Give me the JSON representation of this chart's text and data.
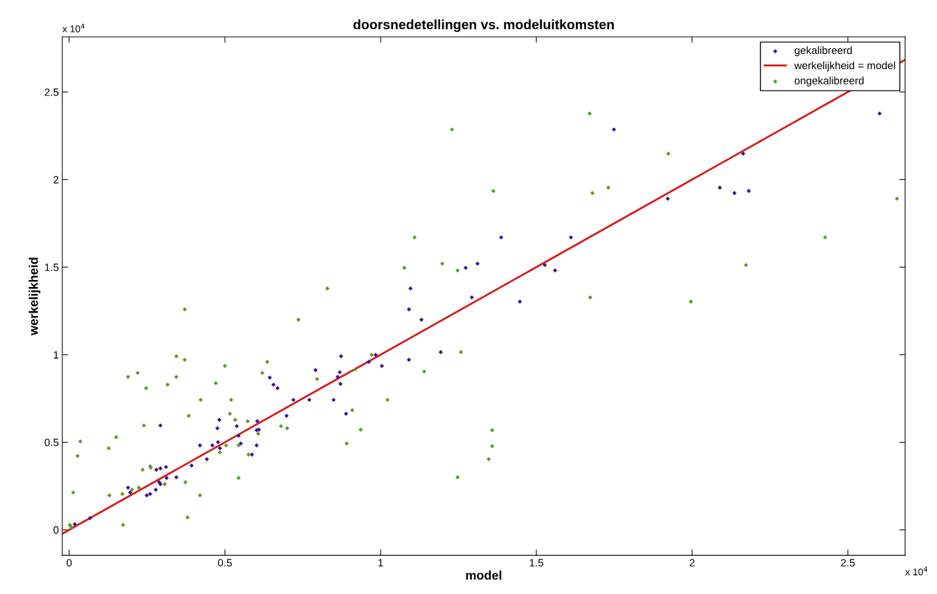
{
  "chart_data": {
    "type": "scatter",
    "title": "doorsnedetellingen vs. modeluitkomsten",
    "xlabel": "model",
    "ylabel": "werkelijkheid",
    "annotations": [
      "x 10$^{4}$",
      "x 10$^{4}$"
    ],
    "xlim": [
      -0.022,
      2.684
    ],
    "ylim": [
      -0.146,
      2.815
    ],
    "xticks": [
      0,
      0.5,
      1,
      1.5,
      2,
      2.5
    ],
    "yticks": [
      0,
      0.5,
      1,
      1.5,
      2,
      2.5
    ],
    "grid": false,
    "legend": "top right",
    "marker": "diamond",
    "series": [
      {
        "name": "gekalibreerd",
        "color": "#3f1590",
        "x": [
          0.018,
          0.067,
          0.189,
          0.196,
          0.249,
          0.26,
          0.278,
          0.28,
          0.293,
          0.311,
          0.289,
          0.293,
          0.313,
          0.293,
          0.344,
          0.393,
          0.42,
          0.442,
          0.46,
          0.476,
          0.482,
          0.478,
          0.484,
          0.538,
          0.544,
          0.551,
          0.587,
          0.602,
          0.604,
          0.602,
          0.609,
          0.644,
          0.656,
          0.669,
          0.698,
          0.72,
          0.771,
          0.791,
          0.849,
          0.862,
          0.869,
          0.873,
          0.871,
          0.889,
          1.096,
          1.091,
          1.131,
          1.293,
          1.447,
          0.984,
          0.962,
          1.004,
          1.091,
          1.193,
          1.387,
          1.611,
          1.273,
          1.311,
          1.56,
          1.527,
          1.749,
          2.602,
          2.164,
          1.922,
          2.089,
          2.136,
          2.182
        ],
        "values": [
          0.032,
          0.067,
          0.241,
          0.213,
          0.197,
          0.205,
          0.229,
          0.343,
          0.351,
          0.359,
          0.272,
          0.261,
          0.296,
          0.596,
          0.3,
          0.367,
          0.482,
          0.403,
          0.482,
          0.58,
          0.628,
          0.501,
          0.466,
          0.592,
          0.537,
          0.493,
          0.43,
          0.482,
          0.62,
          0.569,
          0.572,
          0.869,
          0.829,
          0.809,
          0.651,
          0.742,
          0.742,
          0.912,
          0.742,
          0.873,
          0.9,
          0.991,
          0.833,
          0.663,
          1.378,
          1.259,
          1.2,
          1.327,
          1.303,
          0.999,
          0.959,
          0.936,
          0.971,
          1.015,
          1.67,
          1.67,
          1.496,
          1.52,
          1.481,
          1.512,
          2.286,
          2.377,
          2.148,
          1.891,
          1.954,
          1.923,
          1.935
        ]
      },
      {
        "name": "werkelijkheid = model",
        "type": "line",
        "color": "#d81818",
        "line_style": "solid",
        "marker": "none",
        "x": [
          -0.022,
          2.684
        ],
        "values": [
          -0.022,
          2.684
        ]
      },
      {
        "name": "ongekalibreerd",
        "color": "#5f9a2a",
        "x": [
          0.002,
          0.007,
          0.013,
          0.027,
          0.036,
          0.127,
          0.129,
          0.151,
          0.171,
          0.173,
          0.189,
          0.202,
          0.22,
          0.224,
          0.236,
          0.24,
          0.247,
          0.26,
          0.262,
          0.307,
          0.316,
          0.344,
          0.344,
          0.371,
          0.371,
          0.373,
          0.38,
          0.384,
          0.42,
          0.422,
          0.471,
          0.484,
          0.5,
          0.504,
          0.516,
          0.52,
          0.533,
          0.544,
          0.544,
          0.573,
          0.576,
          0.607,
          0.62,
          0.636,
          0.68,
          0.7,
          0.736,
          0.796,
          0.829,
          0.891,
          0.909,
          1.229,
          1.362,
          1.671,
          1.68,
          1.731,
          1.109,
          1.076,
          1.198,
          1.247,
          1.673,
          0.971,
          0.918,
          1.258,
          1.14,
          1.022,
          0.936,
          1.358,
          1.358,
          1.347,
          1.247,
          1.924,
          2.658,
          2.427,
          2.173,
          1.996
        ],
        "values": [
          0.028,
          0.016,
          0.213,
          0.422,
          0.505,
          0.466,
          0.197,
          0.529,
          0.205,
          0.028,
          0.873,
          0.229,
          0.896,
          0.241,
          0.343,
          0.596,
          0.809,
          0.363,
          0.355,
          0.261,
          0.829,
          0.991,
          0.873,
          0.971,
          1.259,
          0.272,
          0.071,
          0.651,
          0.197,
          0.742,
          0.837,
          0.442,
          0.936,
          0.482,
          0.663,
          0.742,
          0.628,
          0.296,
          0.482,
          0.62,
          0.43,
          0.549,
          0.896,
          0.959,
          0.592,
          0.58,
          1.2,
          0.861,
          1.378,
          0.493,
          0.683,
          2.286,
          1.935,
          2.377,
          1.923,
          1.954,
          1.67,
          1.496,
          1.52,
          1.481,
          1.327,
          0.999,
          0.916,
          1.015,
          0.904,
          0.742,
          0.572,
          0.569,
          0.478,
          0.403,
          0.3,
          2.148,
          1.891,
          1.67,
          1.512,
          1.303
        ]
      }
    ]
  }
}
